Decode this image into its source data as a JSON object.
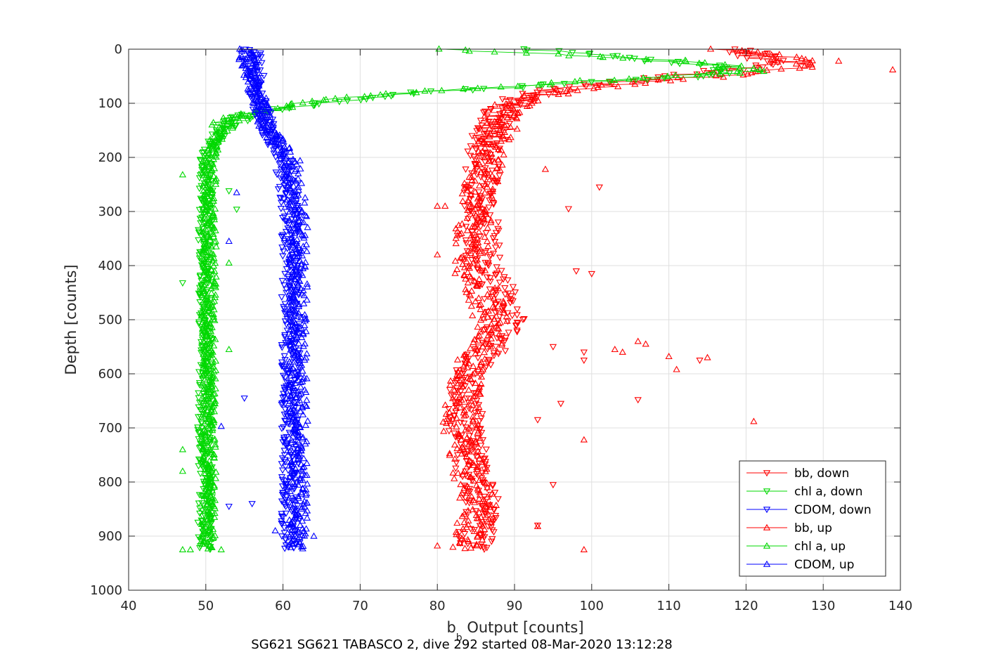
{
  "chart_data": {
    "type": "scatter",
    "xlabel_main": "b",
    "xlabel_sub": "b",
    "xlabel_rest": " Output [counts]",
    "ylabel": "Depth [counts]",
    "title": "SG621 SG621 TABASCO 2, dive 292 started 08-Mar-2020 13:12:28",
    "xlim": [
      40,
      140
    ],
    "ylim": [
      0,
      1000
    ],
    "y_reversed": true,
    "x_ticks": [
      40,
      50,
      60,
      70,
      80,
      90,
      100,
      110,
      120,
      130,
      140
    ],
    "y_ticks": [
      0,
      100,
      200,
      300,
      400,
      500,
      600,
      700,
      800,
      900,
      1000
    ],
    "grid": true,
    "legend_position": "bottom-right",
    "series": [
      {
        "name": "bb, down",
        "color": "#ff0000",
        "marker": "triangle-down",
        "profile": [
          [
            0,
            119
          ],
          [
            10,
            121
          ],
          [
            20,
            123
          ],
          [
            30,
            121
          ],
          [
            40,
            117
          ],
          [
            50,
            110
          ],
          [
            60,
            104
          ],
          [
            70,
            98
          ],
          [
            80,
            94
          ],
          [
            90,
            91
          ],
          [
            100,
            89
          ],
          [
            110,
            88
          ],
          [
            120,
            87.5
          ],
          [
            150,
            87
          ],
          [
            200,
            86
          ],
          [
            300,
            85.5
          ],
          [
            400,
            86
          ],
          [
            450,
            88
          ],
          [
            500,
            89
          ],
          [
            550,
            87
          ],
          [
            600,
            84
          ],
          [
            700,
            83.5
          ],
          [
            800,
            85
          ],
          [
            850,
            86
          ],
          [
            900,
            85
          ],
          [
            925,
            84.5
          ]
        ],
        "outliers": [
          [
            101,
            255
          ],
          [
            97,
            295
          ],
          [
            98,
            410
          ],
          [
            100,
            415
          ],
          [
            95,
            550
          ],
          [
            99,
            560
          ],
          [
            106,
            648
          ],
          [
            96,
            655
          ],
          [
            99,
            575
          ],
          [
            114,
            575
          ],
          [
            93,
            685
          ],
          [
            95,
            805
          ],
          [
            93,
            880
          ],
          [
            86,
            920
          ]
        ]
      },
      {
        "name": "chl a, down",
        "color": "#00d800",
        "marker": "triangle-down",
        "profile": [
          [
            0,
            90
          ],
          [
            10,
            101
          ],
          [
            20,
            108
          ],
          [
            30,
            115
          ],
          [
            40,
            118
          ],
          [
            50,
            114
          ],
          [
            60,
            100
          ],
          [
            70,
            90
          ],
          [
            80,
            78
          ],
          [
            90,
            70
          ],
          [
            100,
            65
          ],
          [
            110,
            60
          ],
          [
            120,
            56
          ],
          [
            130,
            54
          ],
          [
            150,
            52
          ],
          [
            175,
            51
          ],
          [
            200,
            50
          ],
          [
            300,
            50
          ],
          [
            400,
            49.8
          ],
          [
            500,
            50
          ],
          [
            600,
            50
          ],
          [
            700,
            49.8
          ],
          [
            800,
            50
          ],
          [
            900,
            49.8
          ],
          [
            925,
            49.8
          ]
        ],
        "outliers": [
          [
            53,
            262
          ],
          [
            54,
            296
          ],
          [
            47,
            432
          ],
          [
            50,
            650
          ]
        ]
      },
      {
        "name": "CDOM, down",
        "color": "#0000ff",
        "marker": "triangle-down",
        "profile": [
          [
            0,
            56
          ],
          [
            50,
            56.5
          ],
          [
            100,
            57
          ],
          [
            150,
            58
          ],
          [
            200,
            60
          ],
          [
            300,
            61
          ],
          [
            400,
            61
          ],
          [
            500,
            61
          ],
          [
            600,
            61
          ],
          [
            700,
            61
          ],
          [
            800,
            61
          ],
          [
            900,
            61
          ],
          [
            925,
            61
          ]
        ],
        "outliers": [
          [
            53,
            845
          ],
          [
            56,
            840
          ],
          [
            55,
            645
          ]
        ]
      },
      {
        "name": "bb, up",
        "color": "#ff0000",
        "marker": "triangle-up",
        "profile": [
          [
            0,
            118
          ],
          [
            10,
            122
          ],
          [
            20,
            126
          ],
          [
            30,
            127
          ],
          [
            40,
            124
          ],
          [
            50,
            116
          ],
          [
            60,
            108
          ],
          [
            70,
            100
          ],
          [
            80,
            95
          ],
          [
            90,
            92
          ],
          [
            100,
            90
          ],
          [
            110,
            89
          ],
          [
            120,
            88.5
          ],
          [
            150,
            88
          ],
          [
            200,
            86.5
          ],
          [
            300,
            85
          ],
          [
            400,
            84
          ],
          [
            450,
            86
          ],
          [
            500,
            87
          ],
          [
            550,
            86
          ],
          [
            600,
            83.5
          ],
          [
            700,
            83
          ],
          [
            800,
            84.5
          ],
          [
            850,
            85.5
          ],
          [
            900,
            84
          ],
          [
            925,
            84
          ]
        ],
        "outliers": [
          [
            139,
            38
          ],
          [
            132,
            22
          ],
          [
            94,
            222
          ],
          [
            80,
            290
          ],
          [
            81,
            290
          ],
          [
            80,
            380
          ],
          [
            103,
            555
          ],
          [
            104,
            560
          ],
          [
            106,
            540
          ],
          [
            107,
            545
          ],
          [
            110,
            568
          ],
          [
            111,
            592
          ],
          [
            115,
            570
          ],
          [
            121,
            688
          ],
          [
            99,
            722
          ],
          [
            93,
            882
          ],
          [
            80,
            918
          ],
          [
            99,
            925
          ]
        ]
      },
      {
        "name": "chl a, up",
        "color": "#00d800",
        "marker": "triangle-up",
        "profile": [
          [
            0,
            80
          ],
          [
            10,
            95
          ],
          [
            20,
            110
          ],
          [
            30,
            118
          ],
          [
            40,
            121
          ],
          [
            50,
            112
          ],
          [
            60,
            98
          ],
          [
            70,
            88
          ],
          [
            80,
            76
          ],
          [
            90,
            68
          ],
          [
            100,
            63
          ],
          [
            110,
            58
          ],
          [
            120,
            55
          ],
          [
            130,
            53
          ],
          [
            150,
            52
          ],
          [
            175,
            51
          ],
          [
            200,
            50.5
          ],
          [
            300,
            50.5
          ],
          [
            400,
            50.5
          ],
          [
            500,
            50.3
          ],
          [
            600,
            50.5
          ],
          [
            700,
            50.3
          ],
          [
            800,
            50.5
          ],
          [
            900,
            50.3
          ],
          [
            925,
            50.3
          ]
        ],
        "outliers": [
          [
            47,
            232
          ],
          [
            53,
            395
          ],
          [
            53,
            555
          ],
          [
            47,
            740
          ],
          [
            47,
            780
          ],
          [
            47,
            925
          ],
          [
            48,
            925
          ],
          [
            52,
            925
          ]
        ]
      },
      {
        "name": "CDOM, up",
        "color": "#0000ff",
        "marker": "triangle-up",
        "profile": [
          [
            0,
            55
          ],
          [
            50,
            56
          ],
          [
            100,
            57
          ],
          [
            150,
            58
          ],
          [
            200,
            61
          ],
          [
            300,
            62
          ],
          [
            400,
            62
          ],
          [
            500,
            62
          ],
          [
            600,
            62
          ],
          [
            700,
            62
          ],
          [
            800,
            62
          ],
          [
            900,
            62
          ],
          [
            925,
            62
          ]
        ],
        "outliers": [
          [
            54,
            265
          ],
          [
            53,
            355
          ],
          [
            52,
            697
          ],
          [
            59,
            890
          ],
          [
            64,
            900
          ]
        ]
      }
    ]
  }
}
